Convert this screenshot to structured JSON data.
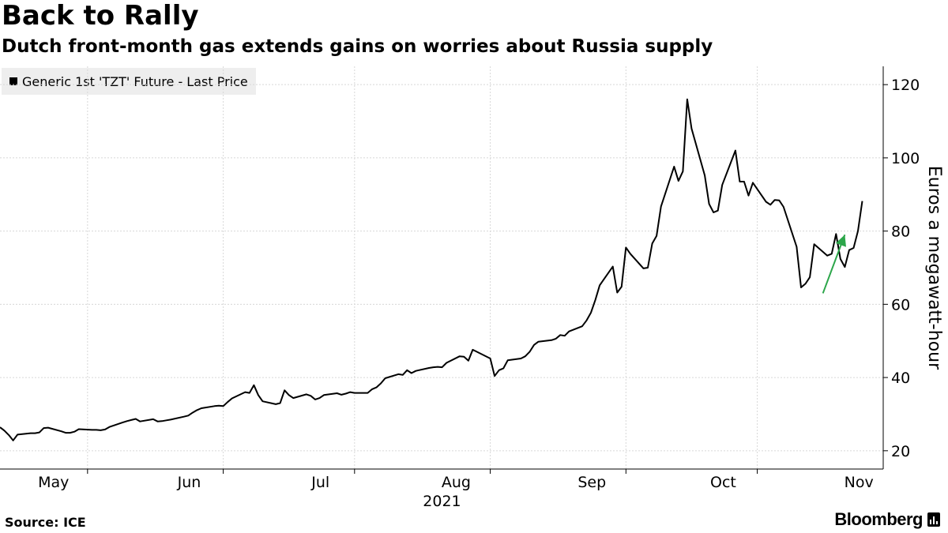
{
  "header": {
    "title": "Back to Rally",
    "subtitle": "Dutch front-month gas extends gains on worries about Russia supply"
  },
  "legend": {
    "label": "Generic 1st 'TZT' Future - Last Price"
  },
  "footer": {
    "source": "Source: ICE",
    "brand": "Bloomberg"
  },
  "chart_data": {
    "type": "line",
    "title": "Back to Rally",
    "subtitle": "Dutch front-month gas extends gains on worries about Russia supply",
    "ylabel": "Euros a megawatt-hour",
    "xlabel": "",
    "year_label": "2021",
    "ylim": [
      15,
      125
    ],
    "yticks": [
      20,
      40,
      60,
      80,
      100,
      120
    ],
    "xlim": [
      "2021-04-26",
      "2021-11-08"
    ],
    "xticks": [
      {
        "label": "May",
        "date": "2021-05-01"
      },
      {
        "label": "Jun",
        "date": "2021-06-01"
      },
      {
        "label": "Jul",
        "date": "2021-07-01"
      },
      {
        "label": "Aug",
        "date": "2021-08-01"
      },
      {
        "label": "Sep",
        "date": "2021-09-01"
      },
      {
        "label": "Oct",
        "date": "2021-10-01"
      },
      {
        "label": "Nov",
        "date": "2021-11-01"
      }
    ],
    "grid": true,
    "legend_position": "top-left",
    "line_color": "#000000",
    "arrow_color": "#2ca64a",
    "annotation": {
      "type": "arrow",
      "from": [
        "2021-10-31",
        63
      ],
      "to": [
        "2021-11-05",
        79
      ]
    },
    "series": [
      {
        "name": "Generic 1st 'TZT' Future - Last Price",
        "points": [
          [
            "2021-04-26",
            26.4
          ],
          [
            "2021-04-27",
            25.5
          ],
          [
            "2021-04-28",
            24.3
          ],
          [
            "2021-04-29",
            22.8
          ],
          [
            "2021-04-30",
            24.4
          ],
          [
            "2021-05-03",
            24.8
          ],
          [
            "2021-05-04",
            24.8
          ],
          [
            "2021-05-05",
            25.0
          ],
          [
            "2021-05-06",
            26.2
          ],
          [
            "2021-05-07",
            26.3
          ],
          [
            "2021-05-10",
            25.3
          ],
          [
            "2021-05-11",
            24.9
          ],
          [
            "2021-05-12",
            24.9
          ],
          [
            "2021-05-13",
            25.2
          ],
          [
            "2021-05-14",
            25.9
          ],
          [
            "2021-05-17",
            25.7
          ],
          [
            "2021-05-18",
            25.7
          ],
          [
            "2021-05-19",
            25.6
          ],
          [
            "2021-05-20",
            25.8
          ],
          [
            "2021-05-21",
            26.5
          ],
          [
            "2021-05-24",
            27.7
          ],
          [
            "2021-05-25",
            28.1
          ],
          [
            "2021-05-26",
            28.4
          ],
          [
            "2021-05-27",
            28.7
          ],
          [
            "2021-05-28",
            28.0
          ],
          [
            "2021-05-31",
            28.6
          ],
          [
            "2021-06-01",
            28.0
          ],
          [
            "2021-06-02",
            28.1
          ],
          [
            "2021-06-03",
            28.3
          ],
          [
            "2021-06-04",
            28.5
          ],
          [
            "2021-06-07",
            29.3
          ],
          [
            "2021-06-08",
            29.6
          ],
          [
            "2021-06-09",
            30.4
          ],
          [
            "2021-06-10",
            31.1
          ],
          [
            "2021-06-11",
            31.6
          ],
          [
            "2021-06-14",
            32.2
          ],
          [
            "2021-06-15",
            32.3
          ],
          [
            "2021-06-16",
            32.2
          ],
          [
            "2021-06-17",
            33.3
          ],
          [
            "2021-06-18",
            34.3
          ],
          [
            "2021-06-21",
            36.0
          ],
          [
            "2021-06-22",
            35.8
          ],
          [
            "2021-06-23",
            37.9
          ],
          [
            "2021-06-24",
            35.2
          ],
          [
            "2021-06-25",
            33.5
          ],
          [
            "2021-06-28",
            32.7
          ],
          [
            "2021-06-29",
            33.0
          ],
          [
            "2021-06-30",
            36.5
          ],
          [
            "2021-07-01",
            35.2
          ],
          [
            "2021-07-02",
            34.4
          ],
          [
            "2021-07-05",
            35.4
          ],
          [
            "2021-07-06",
            35.0
          ],
          [
            "2021-07-07",
            34.0
          ],
          [
            "2021-07-08",
            34.4
          ],
          [
            "2021-07-09",
            35.2
          ],
          [
            "2021-07-12",
            35.7
          ],
          [
            "2021-07-13",
            35.3
          ],
          [
            "2021-07-14",
            35.6
          ],
          [
            "2021-07-15",
            36.0
          ],
          [
            "2021-07-16",
            35.8
          ],
          [
            "2021-07-19",
            35.8
          ],
          [
            "2021-07-20",
            36.8
          ],
          [
            "2021-07-21",
            37.3
          ],
          [
            "2021-07-22",
            38.4
          ],
          [
            "2021-07-23",
            39.8
          ],
          [
            "2021-07-26",
            40.9
          ],
          [
            "2021-07-27",
            40.7
          ],
          [
            "2021-07-28",
            42.0
          ],
          [
            "2021-07-29",
            41.2
          ],
          [
            "2021-07-30",
            41.8
          ],
          [
            "2021-08-02",
            42.6
          ],
          [
            "2021-08-03",
            42.8
          ],
          [
            "2021-08-04",
            42.9
          ],
          [
            "2021-08-05",
            42.8
          ],
          [
            "2021-08-06",
            44.0
          ],
          [
            "2021-08-09",
            45.8
          ],
          [
            "2021-08-10",
            45.7
          ],
          [
            "2021-08-11",
            44.6
          ],
          [
            "2021-08-12",
            47.6
          ],
          [
            "2021-08-13",
            47.0
          ],
          [
            "2021-08-16",
            45.2
          ],
          [
            "2021-08-17",
            40.4
          ],
          [
            "2021-08-18",
            42.0
          ],
          [
            "2021-08-19",
            42.5
          ],
          [
            "2021-08-20",
            44.7
          ],
          [
            "2021-08-23",
            45.2
          ],
          [
            "2021-08-24",
            45.8
          ],
          [
            "2021-08-25",
            47.0
          ],
          [
            "2021-08-26",
            48.9
          ],
          [
            "2021-08-27",
            49.8
          ],
          [
            "2021-08-30",
            50.2
          ],
          [
            "2021-08-31",
            50.6
          ],
          [
            "2021-09-01",
            51.6
          ],
          [
            "2021-09-02",
            51.4
          ],
          [
            "2021-09-03",
            52.6
          ],
          [
            "2021-09-06",
            54.0
          ],
          [
            "2021-09-07",
            55.6
          ],
          [
            "2021-09-08",
            57.7
          ],
          [
            "2021-09-09",
            61.2
          ],
          [
            "2021-09-10",
            65.2
          ],
          [
            "2021-09-13",
            70.3
          ],
          [
            "2021-09-14",
            63.2
          ],
          [
            "2021-09-15",
            64.8
          ],
          [
            "2021-09-16",
            75.5
          ],
          [
            "2021-09-17",
            73.8
          ],
          [
            "2021-09-20",
            69.8
          ],
          [
            "2021-09-21",
            70.0
          ],
          [
            "2021-09-22",
            76.6
          ],
          [
            "2021-09-23",
            78.7
          ],
          [
            "2021-09-24",
            86.7
          ],
          [
            "2021-09-27",
            97.6
          ],
          [
            "2021-09-28",
            93.7
          ],
          [
            "2021-09-29",
            96.3
          ],
          [
            "2021-09-30",
            116.0
          ],
          [
            "2021-10-01",
            108.0
          ],
          [
            "2021-10-04",
            95.2
          ],
          [
            "2021-10-05",
            87.4
          ],
          [
            "2021-10-06",
            85.1
          ],
          [
            "2021-10-07",
            85.6
          ],
          [
            "2021-10-08",
            92.6
          ],
          [
            "2021-10-11",
            102.0
          ],
          [
            "2021-10-12",
            93.5
          ],
          [
            "2021-10-13",
            93.5
          ],
          [
            "2021-10-14",
            89.7
          ],
          [
            "2021-10-15",
            93.2
          ],
          [
            "2021-10-18",
            88.0
          ],
          [
            "2021-10-19",
            87.2
          ],
          [
            "2021-10-20",
            88.5
          ],
          [
            "2021-10-21",
            88.4
          ],
          [
            "2021-10-22",
            86.6
          ],
          [
            "2021-10-25",
            75.7
          ],
          [
            "2021-10-26",
            64.6
          ],
          [
            "2021-10-27",
            65.6
          ],
          [
            "2021-10-28",
            67.4
          ],
          [
            "2021-10-29",
            76.4
          ],
          [
            "2021-11-01",
            73.3
          ],
          [
            "2021-11-02",
            73.8
          ],
          [
            "2021-11-03",
            79.2
          ],
          [
            "2021-11-04",
            72.4
          ],
          [
            "2021-11-05",
            70.2
          ],
          [
            "2021-11-06",
            74.8
          ],
          [
            "2021-11-07",
            75.4
          ],
          [
            "2021-11-08",
            80.0
          ],
          [
            "2021-11-09",
            88.2
          ]
        ]
      }
    ]
  }
}
